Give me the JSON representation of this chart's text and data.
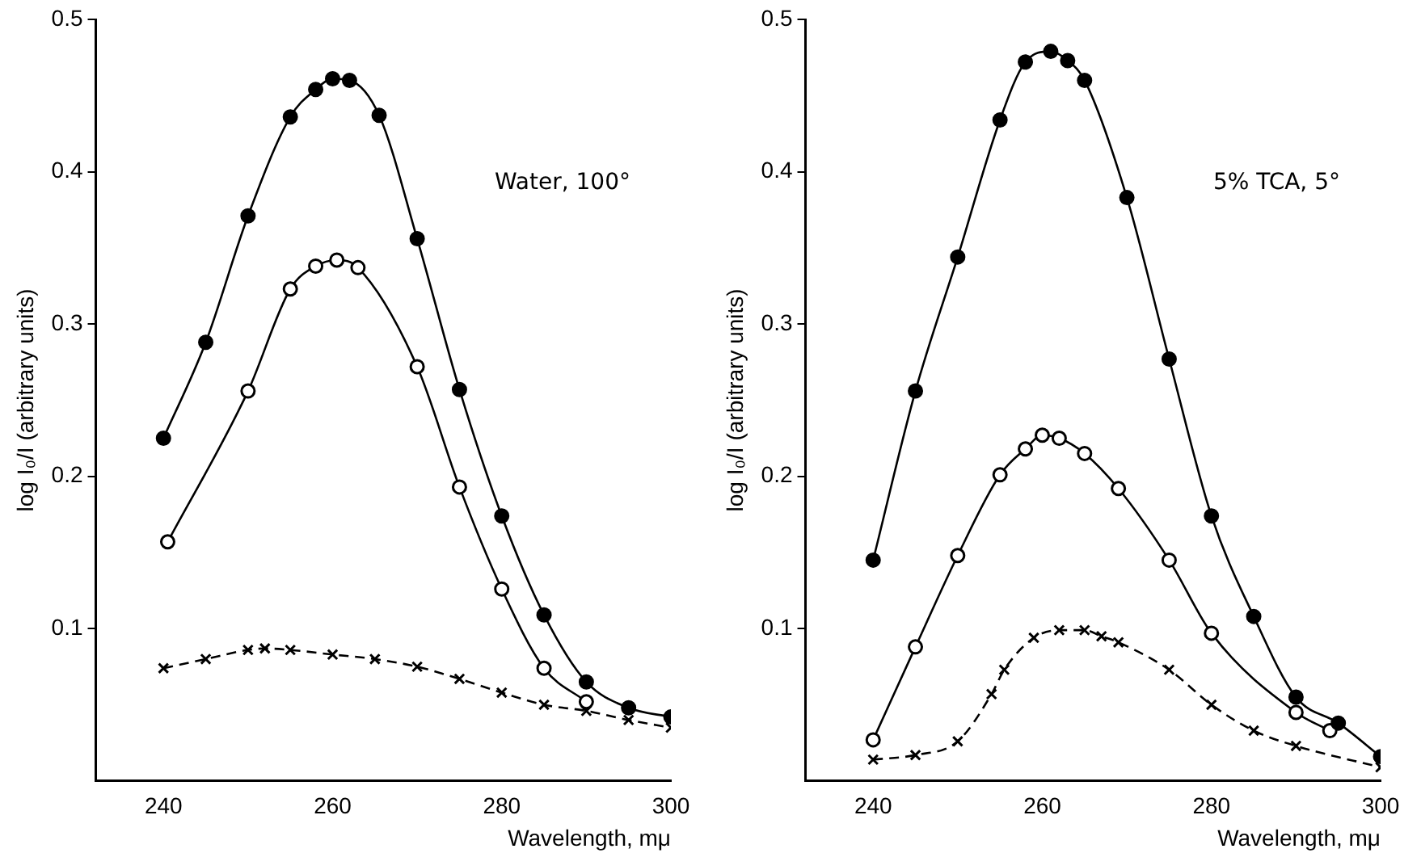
{
  "chart_data": [
    {
      "type": "line",
      "xlabel": "Wavelength, mμ",
      "ylabel": "log I₀/I (arbitrary units)",
      "annotations": [
        "Water, 100°"
      ],
      "xlim": [
        232,
        300
      ],
      "ylim": [
        0,
        0.5
      ],
      "xticks": [
        240,
        260,
        280,
        300
      ],
      "yticks": [
        0.1,
        0.2,
        0.3,
        0.4,
        0.5
      ],
      "grid": false,
      "legend": false,
      "series": [
        {
          "color": "#000000",
          "marker": "circle",
          "line_style": "solid",
          "x": [
            240,
            245,
            250,
            255,
            258,
            260,
            262,
            265.5,
            270,
            275,
            280,
            285,
            290,
            295,
            300
          ],
          "values": [
            0.225,
            0.288,
            0.371,
            0.436,
            0.454,
            0.461,
            0.46,
            0.437,
            0.356,
            0.257,
            0.174,
            0.109,
            0.065,
            0.048,
            0.042
          ]
        },
        {
          "color": "#000000",
          "marker": "circle-open",
          "line_style": "solid",
          "x": [
            240.5,
            250,
            255,
            258,
            260.5,
            263,
            270,
            275,
            280,
            285,
            290
          ],
          "values": [
            0.157,
            0.256,
            0.323,
            0.338,
            0.342,
            0.337,
            0.272,
            0.193,
            0.126,
            0.074,
            0.052
          ]
        },
        {
          "color": "#000000",
          "marker": "cross",
          "line_style": "dashed",
          "x": [
            240,
            245,
            250,
            252,
            255,
            260,
            265,
            270,
            275,
            280,
            285,
            290,
            295,
            300
          ],
          "values": [
            0.074,
            0.08,
            0.086,
            0.087,
            0.086,
            0.083,
            0.08,
            0.075,
            0.067,
            0.058,
            0.05,
            0.046,
            0.04,
            0.035
          ]
        }
      ]
    },
    {
      "type": "line",
      "xlabel": "Wavelength, mμ",
      "ylabel": "log I₀/I (arbitrary units)",
      "annotations": [
        "5% TCA, 5°"
      ],
      "xlim": [
        232,
        300
      ],
      "ylim": [
        0,
        0.5
      ],
      "xticks": [
        240,
        260,
        280,
        300
      ],
      "yticks": [
        0.1,
        0.2,
        0.3,
        0.4,
        0.5
      ],
      "grid": false,
      "legend": false,
      "series": [
        {
          "color": "#000000",
          "marker": "circle",
          "line_style": "solid",
          "x": [
            240,
            245,
            250,
            255,
            258,
            261,
            263,
            265,
            270,
            275,
            280,
            285,
            290,
            295,
            300
          ],
          "values": [
            0.145,
            0.256,
            0.344,
            0.434,
            0.472,
            0.479,
            0.473,
            0.46,
            0.383,
            0.277,
            0.174,
            0.108,
            0.055,
            0.038,
            0.016
          ]
        },
        {
          "color": "#000000",
          "marker": "circle-open",
          "line_style": "solid",
          "x": [
            240,
            245,
            250,
            255,
            258,
            260,
            262,
            265,
            269,
            275,
            280,
            290,
            294
          ],
          "values": [
            0.027,
            0.088,
            0.148,
            0.201,
            0.218,
            0.227,
            0.225,
            0.215,
            0.192,
            0.145,
            0.097,
            0.045,
            0.033
          ]
        },
        {
          "color": "#000000",
          "marker": "cross",
          "line_style": "dashed",
          "x": [
            240,
            245,
            250,
            254,
            255.5,
            259,
            262,
            265,
            267,
            269,
            275,
            280,
            285,
            290,
            300
          ],
          "values": [
            0.014,
            0.017,
            0.026,
            0.057,
            0.073,
            0.094,
            0.099,
            0.099,
            0.095,
            0.091,
            0.073,
            0.05,
            0.033,
            0.023,
            0.009
          ]
        }
      ]
    }
  ]
}
